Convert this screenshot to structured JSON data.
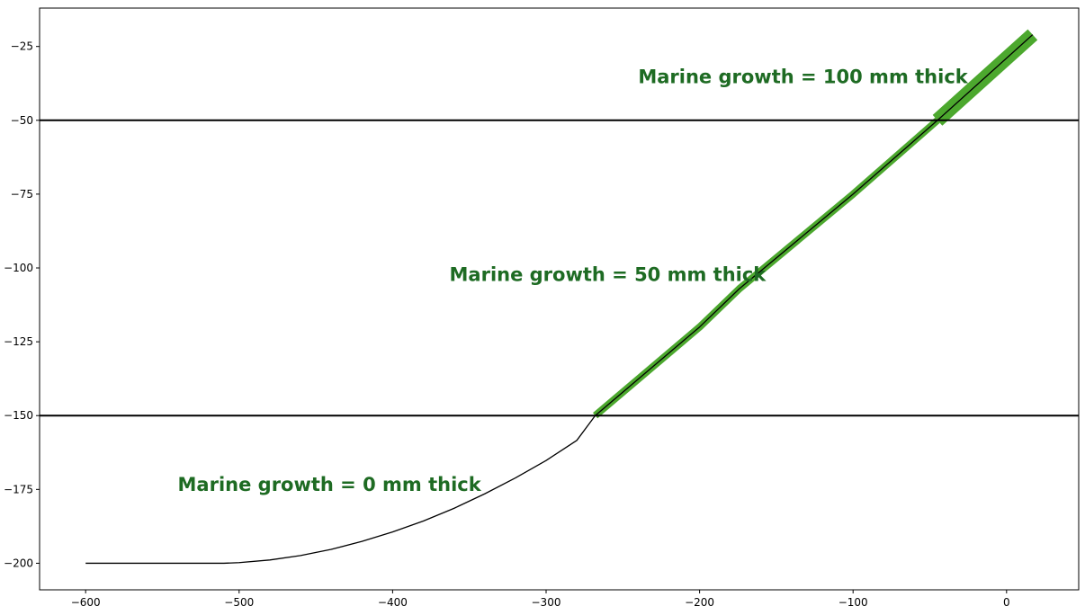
{
  "chart_data": {
    "type": "line",
    "title": "",
    "xlabel": "",
    "ylabel": "",
    "xlim": [
      -630,
      47
    ],
    "ylim": [
      -209,
      -12
    ],
    "grid": false,
    "x_ticks": [
      -600,
      -500,
      -400,
      -300,
      -200,
      -100,
      0
    ],
    "x_tick_labels": [
      "−600",
      "−500",
      "−400",
      "−300",
      "−200",
      "−100",
      "0"
    ],
    "y_ticks": [
      -25,
      -50,
      -75,
      -100,
      -125,
      -150,
      -175,
      -200
    ],
    "y_tick_labels": [
      "−25",
      "−50",
      "−75",
      "−100",
      "−125",
      "−150",
      "−175",
      "−200"
    ],
    "depth_boundaries": [
      -50,
      -150
    ],
    "series": [
      {
        "line_color": "#000000",
        "x": [
          -600,
          -510,
          -500,
          -480,
          -460,
          -440,
          -420,
          -400,
          -380,
          -360,
          -340,
          -320,
          -300,
          -280,
          -268,
          -200,
          -174,
          -100,
          -45,
          17
        ],
        "y": [
          -200,
          -200,
          -199.8,
          -198.9,
          -197.4,
          -195.3,
          -192.6,
          -189.4,
          -185.7,
          -181.4,
          -176.5,
          -171.1,
          -165.2,
          -158.4,
          -150,
          -120,
          -107,
          -75,
          -50,
          -21
        ]
      }
    ],
    "zones": [
      {
        "label": "Marine growth = 0 mm thick",
        "thickness_mm": 0,
        "x_range": [
          -600,
          -268
        ],
        "label_position": {
          "x": -540,
          "y": -173
        }
      },
      {
        "label": "Marine growth = 50 mm thick",
        "thickness_mm": 50,
        "x_range": [
          -268,
          -45
        ],
        "label_position": {
          "x": -363,
          "y": -102
        }
      },
      {
        "label": "Marine growth = 100 mm thick",
        "thickness_mm": 100,
        "x_range": [
          -45,
          17
        ],
        "label_position": {
          "x": -240,
          "y": -35
        }
      }
    ],
    "colors": {
      "growth_fill": "#4ca82e",
      "annotation_text": "#1e6b23",
      "axis": "#000000"
    }
  }
}
